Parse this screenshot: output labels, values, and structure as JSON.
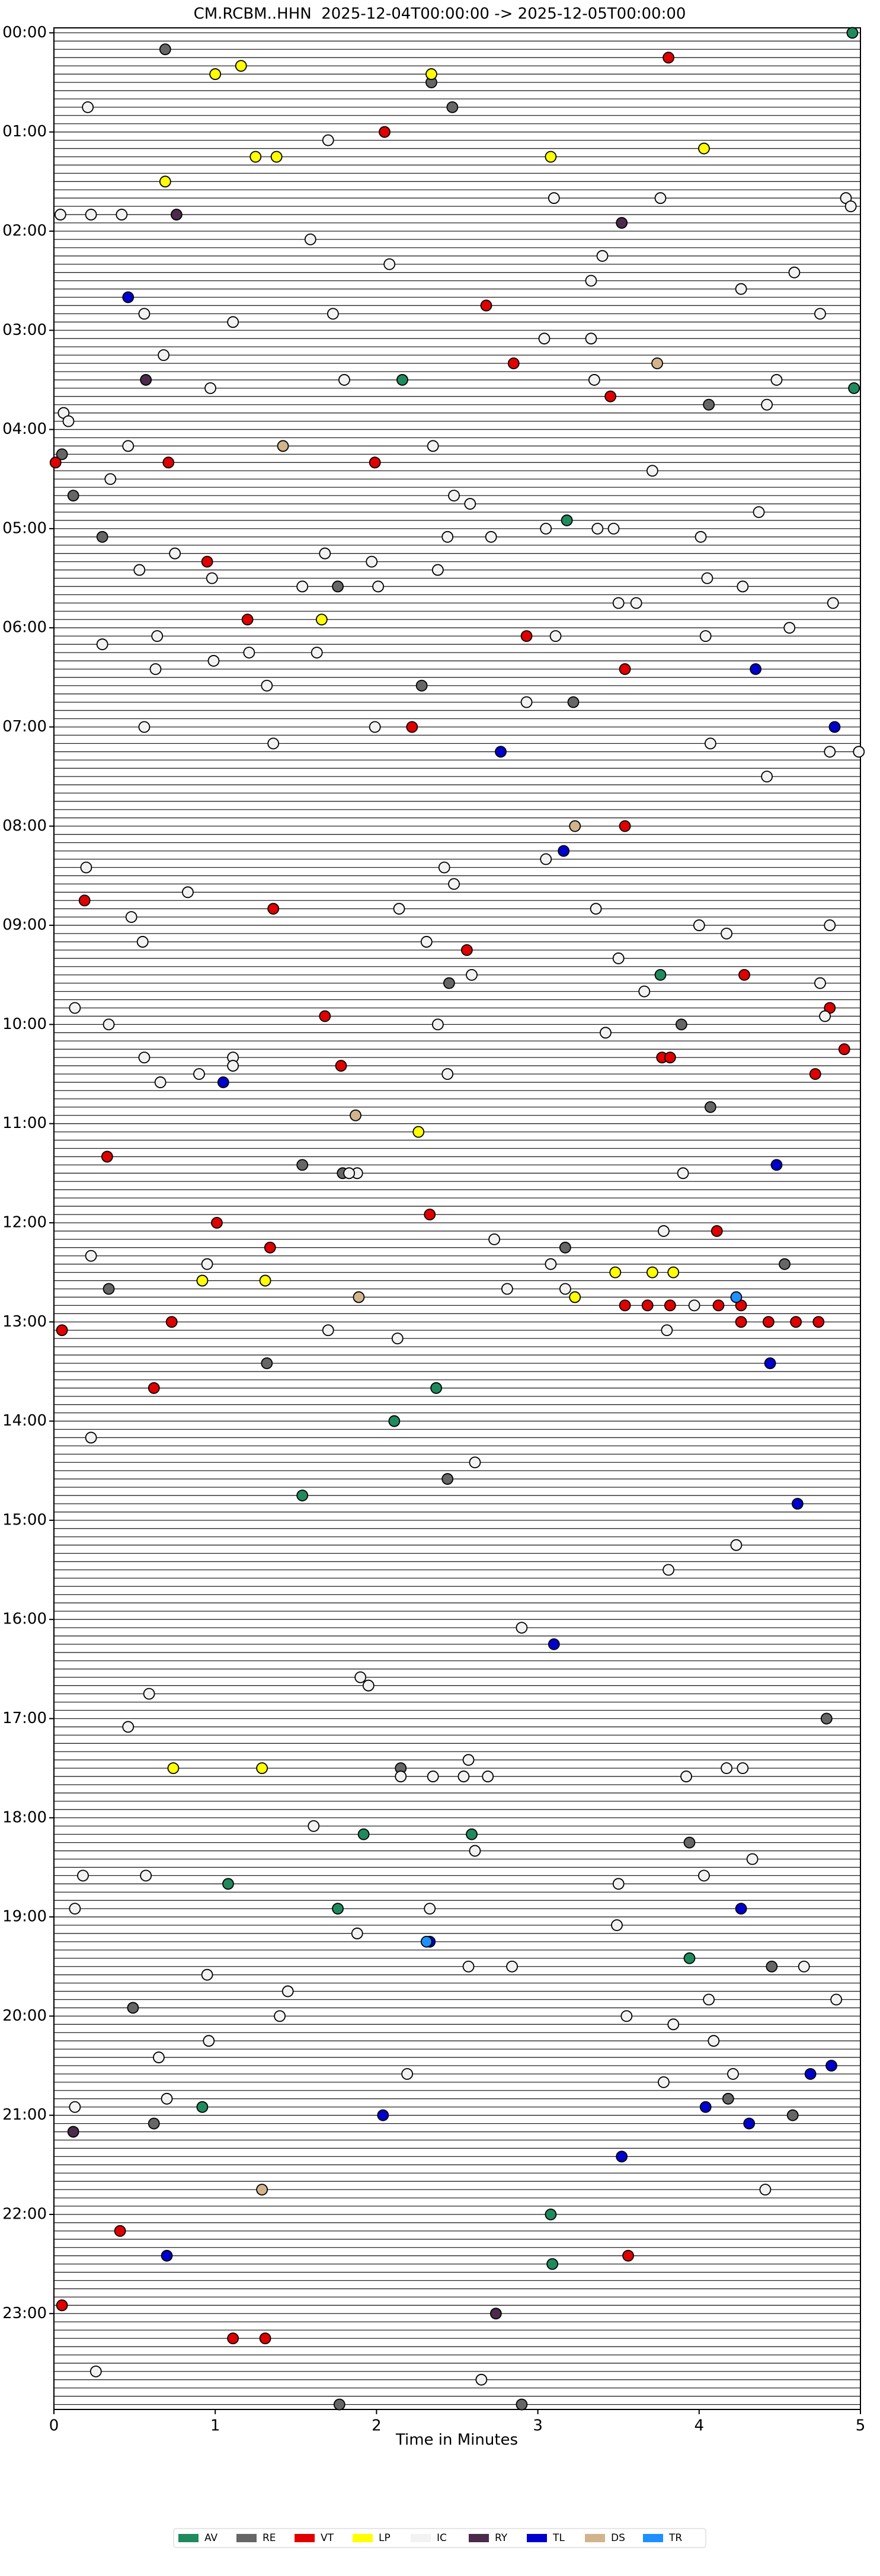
{
  "chart_data": {
    "type": "scatter",
    "title": "CM.RCBM..HHN  2025-12-04T00:00:00 -> 2025-12-05T00:00:00",
    "x_label": "Time in Minutes",
    "xlim": [
      0,
      5
    ],
    "xticks": [
      0,
      1,
      2,
      3,
      4,
      5
    ],
    "ylim": [
      -3,
      1438
    ],
    "y_inverted": true,
    "yticks": [
      {
        "value": 0,
        "label": "00:00"
      },
      {
        "value": 60,
        "label": "01:00"
      },
      {
        "value": 120,
        "label": "02:00"
      },
      {
        "value": 180,
        "label": "03:00"
      },
      {
        "value": 240,
        "label": "04:00"
      },
      {
        "value": 300,
        "label": "05:00"
      },
      {
        "value": 360,
        "label": "06:00"
      },
      {
        "value": 420,
        "label": "07:00"
      },
      {
        "value": 480,
        "label": "08:00"
      },
      {
        "value": 540,
        "label": "09:00"
      },
      {
        "value": 600,
        "label": "10:00"
      },
      {
        "value": 660,
        "label": "11:00"
      },
      {
        "value": 720,
        "label": "12:00"
      },
      {
        "value": 780,
        "label": "13:00"
      },
      {
        "value": 840,
        "label": "14:00"
      },
      {
        "value": 900,
        "label": "15:00"
      },
      {
        "value": 960,
        "label": "16:00"
      },
      {
        "value": 1020,
        "label": "17:00"
      },
      {
        "value": 1080,
        "label": "18:00"
      },
      {
        "value": 1140,
        "label": "19:00"
      },
      {
        "value": 1200,
        "label": "20:00"
      },
      {
        "value": 1260,
        "label": "21:00"
      },
      {
        "value": 1320,
        "label": "22:00"
      },
      {
        "value": 1380,
        "label": "23:00"
      }
    ],
    "legend": "bottom",
    "series": [
      {
        "name": "AV",
        "color": "#1f8a5e",
        "x": [
          4.95,
          2.16,
          4.96,
          3.18,
          3.76,
          2.37,
          2.11,
          1.54,
          3.94,
          1.92,
          2.59,
          1.08,
          1.76,
          0.92,
          3.08,
          3.09
        ],
        "values": [
          0,
          210,
          215,
          295,
          570,
          820,
          840,
          885,
          1165,
          1090,
          1090,
          1120,
          1135,
          1255,
          1320,
          1350
        ]
      },
      {
        "name": "RE",
        "color": "#666666",
        "x": [
          0.69,
          2.34,
          2.47,
          4.06,
          0.05,
          0.12,
          0.3,
          1.76,
          2.28,
          3.22,
          2.45,
          3.89,
          4.07,
          1.54,
          1.79,
          3.17,
          4.53,
          0.34,
          1.32,
          2.44,
          2.15,
          3.94,
          0.49,
          4.45,
          4.18,
          0.62,
          4.58,
          4.79,
          1.77,
          2.9
        ],
        "values": [
          10,
          30,
          45,
          225,
          255,
          280,
          305,
          335,
          395,
          405,
          575,
          600,
          650,
          685,
          690,
          735,
          745,
          760,
          805,
          875,
          1050,
          1095,
          1195,
          1170,
          1250,
          1265,
          1260,
          1020,
          1435,
          1435
        ]
      },
      {
        "name": "VT",
        "color": "#e00000",
        "x": [
          3.81,
          2.05,
          0.01,
          0.71,
          1.99,
          2.68,
          2.85,
          3.45,
          0.95,
          1.2,
          2.93,
          3.54,
          2.22,
          3.54,
          0.19,
          1.36,
          2.56,
          4.28,
          1.68,
          4.81,
          4.9,
          1.78,
          3.77,
          3.82,
          4.72,
          0.33,
          1.01,
          2.33,
          4.11,
          1.34,
          3.54,
          3.68,
          3.82,
          4.12,
          4.26,
          4.26,
          4.43,
          4.6,
          4.74,
          0.73,
          0.05,
          0.62,
          0.41,
          3.56,
          0.05,
          1.11,
          1.31
        ],
        "values": [
          15,
          60,
          260,
          260,
          260,
          165,
          200,
          220,
          320,
          355,
          365,
          385,
          420,
          480,
          525,
          530,
          555,
          570,
          595,
          590,
          615,
          625,
          620,
          620,
          630,
          680,
          720,
          715,
          725,
          735,
          770,
          770,
          770,
          770,
          770,
          780,
          780,
          780,
          780,
          780,
          785,
          820,
          1330,
          1345,
          1375,
          1395,
          1395
        ]
      },
      {
        "name": "LP",
        "color": "#ffff00",
        "x": [
          1.16,
          1.0,
          2.34,
          1.25,
          1.38,
          3.08,
          4.03,
          0.69,
          1.66,
          2.26,
          3.48,
          3.71,
          3.84,
          0.92,
          1.31,
          3.23,
          0.74,
          1.29
        ],
        "values": [
          20,
          25,
          25,
          75,
          75,
          75,
          70,
          90,
          355,
          665,
          750,
          750,
          750,
          755,
          755,
          765,
          1050,
          1050
        ]
      },
      {
        "name": "IC",
        "color": "#f2f2f2",
        "x": [
          0.21,
          1.7,
          3.1,
          3.76,
          4.91,
          4.94,
          0.04,
          0.23,
          0.42,
          1.59,
          3.4,
          2.08,
          4.59,
          3.33,
          4.26,
          0.56,
          1.73,
          4.75,
          1.11,
          3.04,
          3.33,
          0.68,
          1.8,
          0.97,
          3.35,
          4.48,
          4.42,
          0.06,
          0.09,
          0.46,
          2.35,
          0.35,
          3.71,
          2.48,
          2.58,
          4.37,
          2.44,
          2.71,
          3.05,
          3.37,
          3.47,
          4.01,
          0.75,
          1.68,
          1.97,
          0.53,
          0.98,
          2.38,
          4.05,
          1.54,
          2.01,
          4.27,
          3.5,
          3.61,
          4.83,
          4.56,
          0.64,
          3.11,
          4.04,
          0.3,
          1.21,
          1.63,
          0.99,
          0.63,
          1.32,
          2.93,
          0.56,
          1.99,
          1.36,
          4.07,
          4.81,
          4.99,
          4.42,
          0.2,
          2.42,
          3.05,
          2.48,
          0.83,
          2.14,
          3.36,
          0.48,
          4.0,
          4.81,
          4.17,
          2.31,
          0.55,
          3.5,
          2.59,
          4.75,
          3.66,
          0.13,
          4.78,
          0.34,
          2.38,
          3.42,
          0.56,
          1.11,
          1.11,
          0.9,
          0.66,
          2.44,
          1.88,
          1.83,
          3.9,
          3.78,
          2.73,
          0.23,
          0.95,
          3.08,
          2.81,
          3.17,
          3.97,
          1.7,
          3.8,
          2.13,
          0.23,
          2.61,
          4.23,
          3.81,
          2.9,
          0.59,
          1.9,
          1.95,
          0.46,
          2.57,
          2.15,
          2.35,
          2.54,
          2.69,
          3.92,
          4.17,
          4.27,
          1.61,
          2.61,
          4.33,
          0.18,
          0.57,
          3.5,
          4.03,
          0.13,
          2.33,
          1.88,
          3.49,
          2.57,
          2.84,
          4.65,
          0.95,
          1.45,
          4.06,
          4.85,
          1.4,
          3.55,
          3.84,
          0.96,
          4.09,
          0.65,
          4.21,
          2.19,
          3.78,
          0.7,
          0.13,
          4.41,
          0.26,
          2.65
        ],
        "values": [
          45,
          65,
          100,
          100,
          100,
          105,
          110,
          110,
          110,
          125,
          135,
          140,
          145,
          150,
          155,
          170,
          170,
          170,
          175,
          185,
          185,
          195,
          210,
          215,
          210,
          210,
          225,
          230,
          235,
          250,
          250,
          270,
          265,
          280,
          285,
          290,
          305,
          305,
          300,
          300,
          300,
          305,
          315,
          315,
          320,
          325,
          330,
          325,
          330,
          335,
          335,
          335,
          345,
          345,
          345,
          360,
          365,
          365,
          365,
          370,
          375,
          375,
          380,
          385,
          395,
          405,
          420,
          420,
          430,
          430,
          435,
          435,
          450,
          505,
          505,
          500,
          515,
          520,
          530,
          530,
          535,
          540,
          540,
          545,
          550,
          550,
          560,
          570,
          575,
          580,
          590,
          595,
          600,
          600,
          605,
          620,
          620,
          625,
          630,
          635,
          630,
          690,
          690,
          690,
          725,
          730,
          740,
          745,
          745,
          760,
          760,
          770,
          785,
          785,
          790,
          850,
          865,
          915,
          930,
          965,
          1005,
          995,
          1000,
          1025,
          1045,
          1055,
          1055,
          1055,
          1055,
          1055,
          1050,
          1050,
          1085,
          1100,
          1105,
          1115,
          1115,
          1120,
          1115,
          1135,
          1135,
          1150,
          1145,
          1170,
          1170,
          1170,
          1175,
          1185,
          1190,
          1190,
          1200,
          1200,
          1205,
          1215,
          1215,
          1225,
          1235,
          1235,
          1240,
          1250,
          1255,
          1305,
          1415,
          1420
        ]
      },
      {
        "name": "RY",
        "color": "#4b2a4b",
        "x": [
          0.76,
          3.52,
          0.57,
          2.74,
          0.12
        ],
        "values": [
          110,
          115,
          210,
          1380,
          1270
        ]
      },
      {
        "name": "TL",
        "color": "#0000cc",
        "x": [
          0.46,
          3.16,
          2.77,
          4.84,
          4.35,
          1.05,
          4.48,
          4.44,
          4.61,
          3.1,
          4.26,
          2.33,
          4.69,
          4.82,
          4.04,
          4.31,
          2.04,
          3.52,
          0.7
        ],
        "values": [
          160,
          495,
          435,
          420,
          385,
          635,
          685,
          805,
          890,
          975,
          1135,
          1155,
          1235,
          1230,
          1255,
          1265,
          1260,
          1285,
          1345
        ]
      },
      {
        "name": "DS",
        "color": "#d2b48c",
        "x": [
          3.23,
          3.74,
          1.42,
          1.87,
          1.89,
          1.29
        ],
        "values": [
          480,
          200,
          250,
          655,
          765,
          1305
        ]
      },
      {
        "name": "TR",
        "color": "#1e90ff",
        "x": [
          4.23,
          2.31
        ],
        "values": [
          765,
          1155
        ]
      }
    ]
  }
}
